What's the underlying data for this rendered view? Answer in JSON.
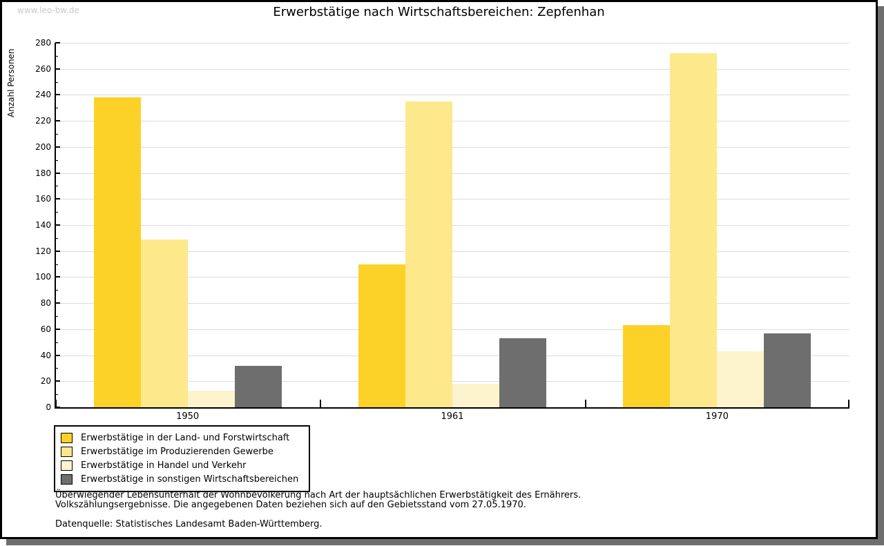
{
  "watermark": "www.leo-bw.de",
  "header": {
    "title": "Erwerbstätige nach Wirtschaftsbereichen: Zepfenhan"
  },
  "chart_data": {
    "type": "bar",
    "title": "Erwerbstätige nach Wirtschaftsbereichen: Zepfenhan",
    "categories": [
      "1950",
      "1961",
      "1970"
    ],
    "series": [
      {
        "name": "Erwerbstätige in der Land- und Forstwirtschaft",
        "color": "#fcd228",
        "values": [
          238,
          110,
          63
        ]
      },
      {
        "name": "Erwerbstätige im Produzierenden Gewerbe",
        "color": "#fde98c",
        "values": [
          129,
          235,
          272
        ]
      },
      {
        "name": "Erwerbstätige in Handel und Verkehr",
        "color": "#fdf3cd",
        "values": [
          13,
          18,
          43
        ]
      },
      {
        "name": "Erwerbstätige in sonstigen Wirtschaftsbereichen",
        "color": "#6e6e6e",
        "values": [
          32,
          53,
          57
        ]
      }
    ],
    "xlabel": "",
    "ylabel": "Anzahl Personen",
    "ylim": [
      0,
      280
    ],
    "ytick_step": 20,
    "ytick_minor_step": 10,
    "grid": true,
    "legend_position": "bottom-left",
    "colors": {
      "grid": "#dcdcdc",
      "axis": "#000000",
      "shadow": "#6e6e6e",
      "watermark": "#c9c9c9"
    }
  },
  "footer": {
    "note_line1": "Überwiegender Lebensunterhalt der Wohnbevölkerung nach Art der hauptsächlichen Erwerbstätigkeit des Ernährers.",
    "note_line2": "Volkszählungsergebnisse. Die angegebenen Daten beziehen sich auf den Gebietsstand vom 27.05.1970.",
    "source": "Datenquelle: Statistisches Landesamt Baden-Württemberg."
  }
}
